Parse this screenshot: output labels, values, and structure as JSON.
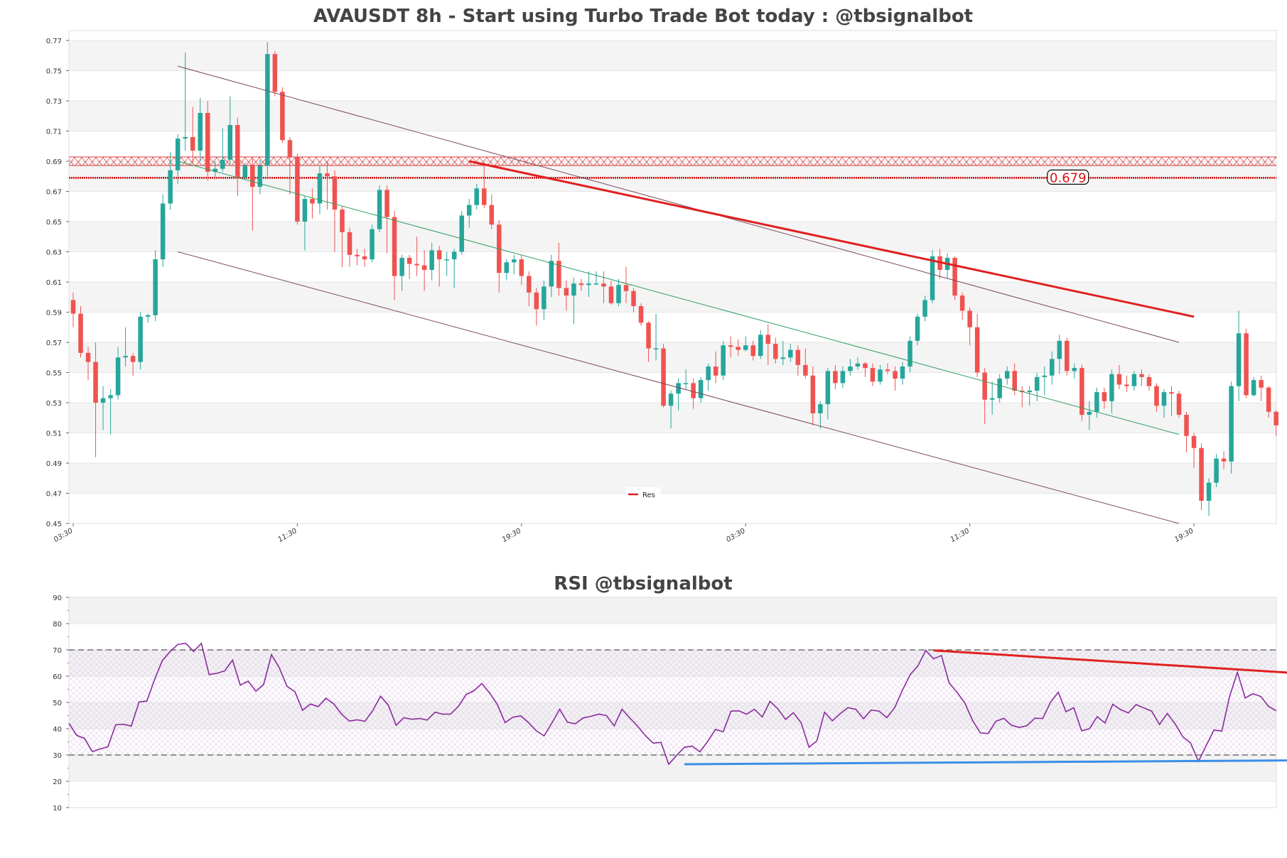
{
  "chart_data": [
    {
      "type": "candlestick",
      "title": "AVAUSDT 8h - Start using Turbo Trade Bot today : @tbsignalbot",
      "ylim": [
        0.45,
        0.77
      ],
      "y_ticks": [
        "0.45",
        "0.47",
        "0.49",
        "0.51",
        "0.53",
        "0.55",
        "0.57",
        "0.59",
        "0.61",
        "0.63",
        "0.65",
        "0.67",
        "0.69",
        "0.71",
        "0.73",
        "0.75",
        "0.77"
      ],
      "x_ticks": [
        {
          "label": "03:30",
          "index": 0
        },
        {
          "label": "11:30",
          "index": 30
        },
        {
          "label": "19:30",
          "index": 60
        },
        {
          "label": "03:30",
          "index": 90
        },
        {
          "label": "11:30",
          "index": 120
        },
        {
          "label": "19:30",
          "index": 150
        }
      ],
      "candles": [
        [
          0.598,
          0.589,
          0.603,
          0.58
        ],
        [
          0.589,
          0.563,
          0.594,
          0.56
        ],
        [
          0.563,
          0.557,
          0.567,
          0.545
        ],
        [
          0.557,
          0.53,
          0.57,
          0.494
        ],
        [
          0.53,
          0.533,
          0.541,
          0.512
        ],
        [
          0.533,
          0.535,
          0.539,
          0.509
        ],
        [
          0.535,
          0.56,
          0.567,
          0.532
        ],
        [
          0.56,
          0.561,
          0.58,
          0.554
        ],
        [
          0.561,
          0.557,
          0.563,
          0.548
        ],
        [
          0.557,
          0.587,
          0.59,
          0.552
        ],
        [
          0.587,
          0.588,
          0.589,
          0.583
        ],
        [
          0.588,
          0.625,
          0.631,
          0.584
        ],
        [
          0.625,
          0.662,
          0.668,
          0.62
        ],
        [
          0.662,
          0.684,
          0.696,
          0.658
        ],
        [
          0.684,
          0.705,
          0.708,
          0.675
        ],
        [
          0.705,
          0.706,
          0.762,
          0.697
        ],
        [
          0.706,
          0.697,
          0.726,
          0.688
        ],
        [
          0.697,
          0.722,
          0.732,
          0.69
        ],
        [
          0.722,
          0.683,
          0.73,
          0.677
        ],
        [
          0.683,
          0.685,
          0.69,
          0.678
        ],
        [
          0.685,
          0.691,
          0.712,
          0.683
        ],
        [
          0.691,
          0.714,
          0.733,
          0.688
        ],
        [
          0.714,
          0.679,
          0.719,
          0.667
        ],
        [
          0.679,
          0.687,
          0.689,
          0.678
        ],
        [
          0.687,
          0.673,
          0.692,
          0.644
        ],
        [
          0.673,
          0.687,
          0.691,
          0.668
        ],
        [
          0.687,
          0.761,
          0.769,
          0.679
        ],
        [
          0.761,
          0.736,
          0.763,
          0.733
        ],
        [
          0.736,
          0.704,
          0.739,
          0.702
        ],
        [
          0.704,
          0.693,
          0.706,
          0.668
        ],
        [
          0.693,
          0.65,
          0.695,
          0.648
        ],
        [
          0.65,
          0.665,
          0.667,
          0.631
        ],
        [
          0.665,
          0.662,
          0.672,
          0.652
        ],
        [
          0.662,
          0.682,
          0.687,
          0.655
        ],
        [
          0.682,
          0.68,
          0.69,
          0.658
        ],
        [
          0.68,
          0.658,
          0.684,
          0.63
        ],
        [
          0.658,
          0.643,
          0.66,
          0.62
        ],
        [
          0.643,
          0.628,
          0.646,
          0.62
        ],
        [
          0.628,
          0.627,
          0.632,
          0.621
        ],
        [
          0.627,
          0.625,
          0.632,
          0.62
        ],
        [
          0.625,
          0.645,
          0.648,
          0.623
        ],
        [
          0.645,
          0.671,
          0.674,
          0.643
        ],
        [
          0.671,
          0.653,
          0.674,
          0.629
        ],
        [
          0.653,
          0.614,
          0.657,
          0.598
        ],
        [
          0.614,
          0.626,
          0.628,
          0.604
        ],
        [
          0.626,
          0.622,
          0.628,
          0.612
        ],
        [
          0.622,
          0.621,
          0.64,
          0.614
        ],
        [
          0.621,
          0.618,
          0.631,
          0.604
        ],
        [
          0.618,
          0.631,
          0.636,
          0.611
        ],
        [
          0.631,
          0.625,
          0.634,
          0.607
        ],
        [
          0.625,
          0.625,
          0.63,
          0.614
        ],
        [
          0.625,
          0.63,
          0.632,
          0.606
        ],
        [
          0.63,
          0.654,
          0.657,
          0.628
        ],
        [
          0.654,
          0.661,
          0.665,
          0.646
        ],
        [
          0.661,
          0.672,
          0.675,
          0.658
        ],
        [
          0.672,
          0.661,
          0.689,
          0.659
        ],
        [
          0.661,
          0.648,
          0.668,
          0.645
        ],
        [
          0.648,
          0.616,
          0.651,
          0.603
        ],
        [
          0.616,
          0.623,
          0.625,
          0.611
        ],
        [
          0.623,
          0.625,
          0.628,
          0.615
        ],
        [
          0.625,
          0.614,
          0.628,
          0.608
        ],
        [
          0.614,
          0.603,
          0.617,
          0.594
        ],
        [
          0.603,
          0.592,
          0.606,
          0.581
        ],
        [
          0.592,
          0.607,
          0.611,
          0.585
        ],
        [
          0.607,
          0.624,
          0.628,
          0.6
        ],
        [
          0.624,
          0.606,
          0.636,
          0.601
        ],
        [
          0.606,
          0.601,
          0.611,
          0.591
        ],
        [
          0.601,
          0.609,
          0.613,
          0.582
        ],
        [
          0.609,
          0.608,
          0.612,
          0.604
        ],
        [
          0.608,
          0.609,
          0.617,
          0.6
        ],
        [
          0.609,
          0.609,
          0.617,
          0.608
        ],
        [
          0.609,
          0.607,
          0.617,
          0.596
        ],
        [
          0.607,
          0.596,
          0.611,
          0.595
        ],
        [
          0.596,
          0.608,
          0.612,
          0.594
        ],
        [
          0.608,
          0.604,
          0.62,
          0.596
        ],
        [
          0.604,
          0.594,
          0.606,
          0.59
        ],
        [
          0.594,
          0.583,
          0.596,
          0.581
        ],
        [
          0.583,
          0.566,
          0.584,
          0.557
        ],
        [
          0.566,
          0.566,
          0.589,
          0.558
        ],
        [
          0.566,
          0.528,
          0.569,
          0.527
        ],
        [
          0.528,
          0.536,
          0.538,
          0.513
        ],
        [
          0.536,
          0.543,
          0.546,
          0.525
        ],
        [
          0.543,
          0.543,
          0.552,
          0.539
        ],
        [
          0.543,
          0.533,
          0.546,
          0.526
        ],
        [
          0.533,
          0.545,
          0.547,
          0.53
        ],
        [
          0.545,
          0.554,
          0.556,
          0.538
        ],
        [
          0.554,
          0.548,
          0.564,
          0.543
        ],
        [
          0.548,
          0.568,
          0.571,
          0.545
        ],
        [
          0.568,
          0.567,
          0.574,
          0.56
        ],
        [
          0.567,
          0.565,
          0.572,
          0.561
        ],
        [
          0.565,
          0.568,
          0.574,
          0.564
        ],
        [
          0.568,
          0.561,
          0.571,
          0.558
        ],
        [
          0.561,
          0.575,
          0.578,
          0.559
        ],
        [
          0.575,
          0.569,
          0.582,
          0.555
        ],
        [
          0.569,
          0.559,
          0.573,
          0.556
        ],
        [
          0.559,
          0.56,
          0.571,
          0.555
        ],
        [
          0.56,
          0.565,
          0.569,
          0.557
        ],
        [
          0.565,
          0.555,
          0.568,
          0.548
        ],
        [
          0.555,
          0.548,
          0.566,
          0.546
        ],
        [
          0.548,
          0.523,
          0.554,
          0.515
        ],
        [
          0.523,
          0.529,
          0.531,
          0.513
        ],
        [
          0.529,
          0.551,
          0.553,
          0.519
        ],
        [
          0.551,
          0.543,
          0.555,
          0.539
        ],
        [
          0.543,
          0.551,
          0.554,
          0.54
        ],
        [
          0.551,
          0.554,
          0.559,
          0.548
        ],
        [
          0.554,
          0.556,
          0.56,
          0.552
        ],
        [
          0.556,
          0.553,
          0.557,
          0.547
        ],
        [
          0.553,
          0.544,
          0.556,
          0.541
        ],
        [
          0.544,
          0.552,
          0.555,
          0.542
        ],
        [
          0.552,
          0.551,
          0.556,
          0.549
        ],
        [
          0.551,
          0.546,
          0.554,
          0.538
        ],
        [
          0.546,
          0.554,
          0.557,
          0.542
        ],
        [
          0.554,
          0.571,
          0.574,
          0.55
        ],
        [
          0.571,
          0.587,
          0.589,
          0.568
        ],
        [
          0.587,
          0.598,
          0.601,
          0.584
        ],
        [
          0.598,
          0.627,
          0.631,
          0.596
        ],
        [
          0.627,
          0.618,
          0.632,
          0.612
        ],
        [
          0.618,
          0.626,
          0.629,
          0.612
        ],
        [
          0.626,
          0.601,
          0.627,
          0.598
        ],
        [
          0.601,
          0.591,
          0.603,
          0.585
        ],
        [
          0.591,
          0.58,
          0.593,
          0.568
        ],
        [
          0.58,
          0.55,
          0.589,
          0.547
        ],
        [
          0.55,
          0.532,
          0.553,
          0.516
        ],
        [
          0.532,
          0.533,
          0.544,
          0.522
        ],
        [
          0.533,
          0.546,
          0.549,
          0.53
        ],
        [
          0.546,
          0.551,
          0.554,
          0.542
        ],
        [
          0.551,
          0.538,
          0.556,
          0.535
        ],
        [
          0.538,
          0.537,
          0.541,
          0.527
        ],
        [
          0.537,
          0.538,
          0.541,
          0.528
        ],
        [
          0.538,
          0.547,
          0.55,
          0.531
        ],
        [
          0.547,
          0.548,
          0.554,
          0.535
        ],
        [
          0.548,
          0.559,
          0.564,
          0.542
        ],
        [
          0.559,
          0.571,
          0.575,
          0.549
        ],
        [
          0.571,
          0.551,
          0.573,
          0.548
        ],
        [
          0.551,
          0.553,
          0.556,
          0.546
        ],
        [
          0.553,
          0.522,
          0.555,
          0.518
        ],
        [
          0.522,
          0.524,
          0.531,
          0.512
        ],
        [
          0.524,
          0.537,
          0.54,
          0.52
        ],
        [
          0.537,
          0.531,
          0.54,
          0.526
        ],
        [
          0.531,
          0.549,
          0.552,
          0.523
        ],
        [
          0.549,
          0.542,
          0.555,
          0.539
        ],
        [
          0.542,
          0.541,
          0.548,
          0.537
        ],
        [
          0.541,
          0.549,
          0.551,
          0.538
        ],
        [
          0.549,
          0.547,
          0.552,
          0.541
        ],
        [
          0.547,
          0.541,
          0.549,
          0.538
        ],
        [
          0.541,
          0.528,
          0.543,
          0.524
        ],
        [
          0.528,
          0.537,
          0.539,
          0.52
        ],
        [
          0.537,
          0.536,
          0.541,
          0.521
        ],
        [
          0.536,
          0.522,
          0.538,
          0.52
        ],
        [
          0.522,
          0.508,
          0.524,
          0.497
        ],
        [
          0.508,
          0.5,
          0.51,
          0.487
        ],
        [
          0.5,
          0.465,
          0.503,
          0.459
        ],
        [
          0.465,
          0.477,
          0.48,
          0.455
        ],
        [
          0.477,
          0.493,
          0.496,
          0.474
        ],
        [
          0.493,
          0.491,
          0.498,
          0.486
        ],
        [
          0.491,
          0.541,
          0.544,
          0.483
        ],
        [
          0.541,
          0.576,
          0.591,
          0.531
        ],
        [
          0.576,
          0.535,
          0.579,
          0.533
        ],
        [
          0.535,
          0.545,
          0.547,
          0.534
        ],
        [
          0.545,
          0.54,
          0.548,
          0.531
        ],
        [
          0.54,
          0.524,
          0.541,
          0.52
        ],
        [
          0.524,
          0.515,
          0.525,
          0.508
        ]
      ],
      "trendlines": [
        {
          "name": "Channel upper",
          "x1": 14,
          "y1": 0.753,
          "x2": 148,
          "y2": 0.57,
          "color": "#7b4a5e"
        },
        {
          "name": "Channel middle",
          "x1": 14,
          "y1": 0.69,
          "x2": 148,
          "y2": 0.509,
          "color": "#2e9e5e"
        },
        {
          "name": "Channel lower",
          "x1": 14,
          "y1": 0.63,
          "x2": 148,
          "y2": 0.45,
          "color": "#7b4a5e"
        },
        {
          "name": "Res",
          "x1": 53,
          "y1": 0.69,
          "x2": 150,
          "y2": 0.587,
          "color": "#e02020"
        }
      ],
      "hlines": [
        {
          "value": 0.679,
          "color": "#cc0000"
        },
        {
          "value": 0.69,
          "color": "#dd3333",
          "style": "zone"
        }
      ],
      "price_label": "0.679",
      "legend": {
        "label": "Res",
        "position": "bottom-center"
      }
    },
    {
      "type": "line",
      "title": "RSI @tbsignalbot",
      "ylim": [
        10,
        90
      ],
      "y_ticks": [
        "10",
        "20",
        "30",
        "40",
        "50",
        "60",
        "70",
        "80",
        "90"
      ],
      "levels": [
        30,
        70
      ],
      "series": [
        {
          "name": "RSI",
          "color": "#8a2a9e",
          "values": [
            42,
            37.5,
            36.3,
            31.3,
            32.3,
            33.1,
            41.5,
            41.7,
            41,
            50.2,
            50.5,
            58.8,
            66,
            69.4,
            72.1,
            72.5,
            69.4,
            72.5,
            60.6,
            61.1,
            62,
            66.1,
            56.6,
            58.1,
            54.3,
            56.9,
            68.2,
            63.2,
            56.1,
            54.1,
            47,
            49.4,
            48.4,
            51.6,
            49.4,
            45.6,
            42.9,
            43.4,
            42.8,
            46.9,
            52.4,
            49,
            41.3,
            44.2,
            43.6,
            43.9,
            43.3,
            46.3,
            45.5,
            45.6,
            48.5,
            53,
            54.5,
            57.2,
            53.7,
            49.2,
            42.3,
            44.4,
            44.9,
            42.3,
            39.2,
            37.3,
            42.2,
            47.4,
            42.5,
            41.9,
            44.1,
            44.7,
            45.6,
            45,
            41.1,
            47.4,
            44.1,
            41,
            37.4,
            34.5,
            34.8,
            26.5,
            29.8,
            32.9,
            33.4,
            31.2,
            35.2,
            39.7,
            38.9,
            46.7,
            46.8,
            45.5,
            47.4,
            44.5,
            50.4,
            47.6,
            43.5,
            46.1,
            42.2,
            33,
            35.3,
            46.3,
            43,
            45.7,
            48,
            47.4,
            43.8,
            47.1,
            46.7,
            44.2,
            48,
            54.7,
            60.6,
            64,
            69.8,
            66.6,
            67.9,
            57.4,
            53.9,
            49.9,
            43.2,
            38.4,
            38.2,
            42.8,
            44,
            41.3,
            40.5,
            41.2,
            44,
            43.9,
            50,
            53.9,
            46.5,
            48,
            39.2,
            40,
            44.6,
            42.2,
            49.3,
            47.3,
            46,
            49.2,
            47.9,
            46.7,
            41.6,
            45.8,
            41.9,
            36.9,
            34.5,
            27.6,
            33.6,
            39.5,
            39.1,
            52.3,
            61.5,
            51.7,
            53.3,
            52.3,
            48.5,
            46.8
          ]
        },
        {
          "name": "Resistance",
          "color": "#e02020",
          "x": [
            111,
            160
          ],
          "y": [
            69.8,
            60.7
          ]
        },
        {
          "name": "Support",
          "color": "#3a8ee6",
          "x": [
            79,
            160
          ],
          "y": [
            26.5,
            28
          ]
        }
      ]
    }
  ]
}
